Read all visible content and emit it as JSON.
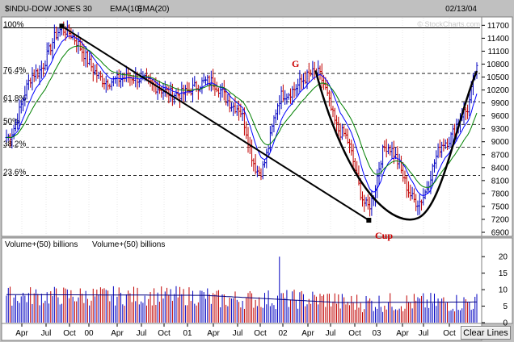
{
  "header": {
    "symbol": "$INDU-DOW JONES 30",
    "ema10_label": "EMA(10)",
    "ema20_label": "EMA(20)",
    "date": "02/13/04",
    "watermark": "© StockCharts.com"
  },
  "colors": {
    "bg": "#ffffff",
    "up": "#0000c0",
    "down": "#c00000",
    "ema10": "#0000ff",
    "ema20": "#008000",
    "annotation": "#cc0000",
    "volume_ma": "#000080"
  },
  "fib_labels": [
    "100%",
    "76.4%",
    "61.8%",
    "50%",
    "38.2%",
    "23.6%"
  ],
  "price_axis": {
    "ticks": [
      "11700",
      "11400",
      "11100",
      "10800",
      "10500",
      "10200",
      "9900",
      "9600",
      "9300",
      "9000",
      "8700",
      "8400",
      "8100",
      "7800",
      "7500",
      "7200",
      "6900"
    ]
  },
  "annotations": {
    "g_label": "G",
    "cup_label": "Cup"
  },
  "volume_panel": {
    "title_a": "Volume+(50) billions",
    "title_b": "Volume+(50) billions",
    "ticks": [
      "20",
      "15",
      "10",
      "5",
      "0"
    ]
  },
  "x_axis": {
    "labels": [
      "Apr",
      "Jul",
      "Oct",
      "00",
      "Apr",
      "Jul",
      "Oct",
      "01",
      "Apr",
      "Jul",
      "Oct",
      "02",
      "Apr",
      "Jul",
      "Oct",
      "03",
      "Apr",
      "Jul",
      "Oct"
    ]
  },
  "clear_button": "Clear Lines",
  "chart_data": {
    "type": "ohlc",
    "series": [
      {
        "name": "$INDU-DOW JONES 30",
        "anchors_x": [
          0,
          16,
          30,
          55,
          67,
          93,
          110,
          125,
          137,
          150,
          168,
          182,
          196,
          206,
          223,
          238,
          249,
          255
        ],
        "anchors_y": [
          9100,
          10600,
          11600,
          10400,
          10500,
          10100,
          10400,
          9800,
          8300,
          10100,
          10600,
          9200,
          7500,
          8900,
          7600,
          9000,
          9700,
          10650
        ]
      },
      {
        "name": "EMA(10)"
      },
      {
        "name": "EMA(20)"
      }
    ],
    "volume": {
      "baseline_billions": [
        6,
        8,
        5
      ],
      "spike_billions": 20
    },
    "ylim": [
      6900,
      11800
    ],
    "volume_ylim": [
      0,
      22
    ],
    "fib_levels": [
      100,
      76.4,
      61.8,
      50,
      38.2,
      23.6
    ]
  }
}
